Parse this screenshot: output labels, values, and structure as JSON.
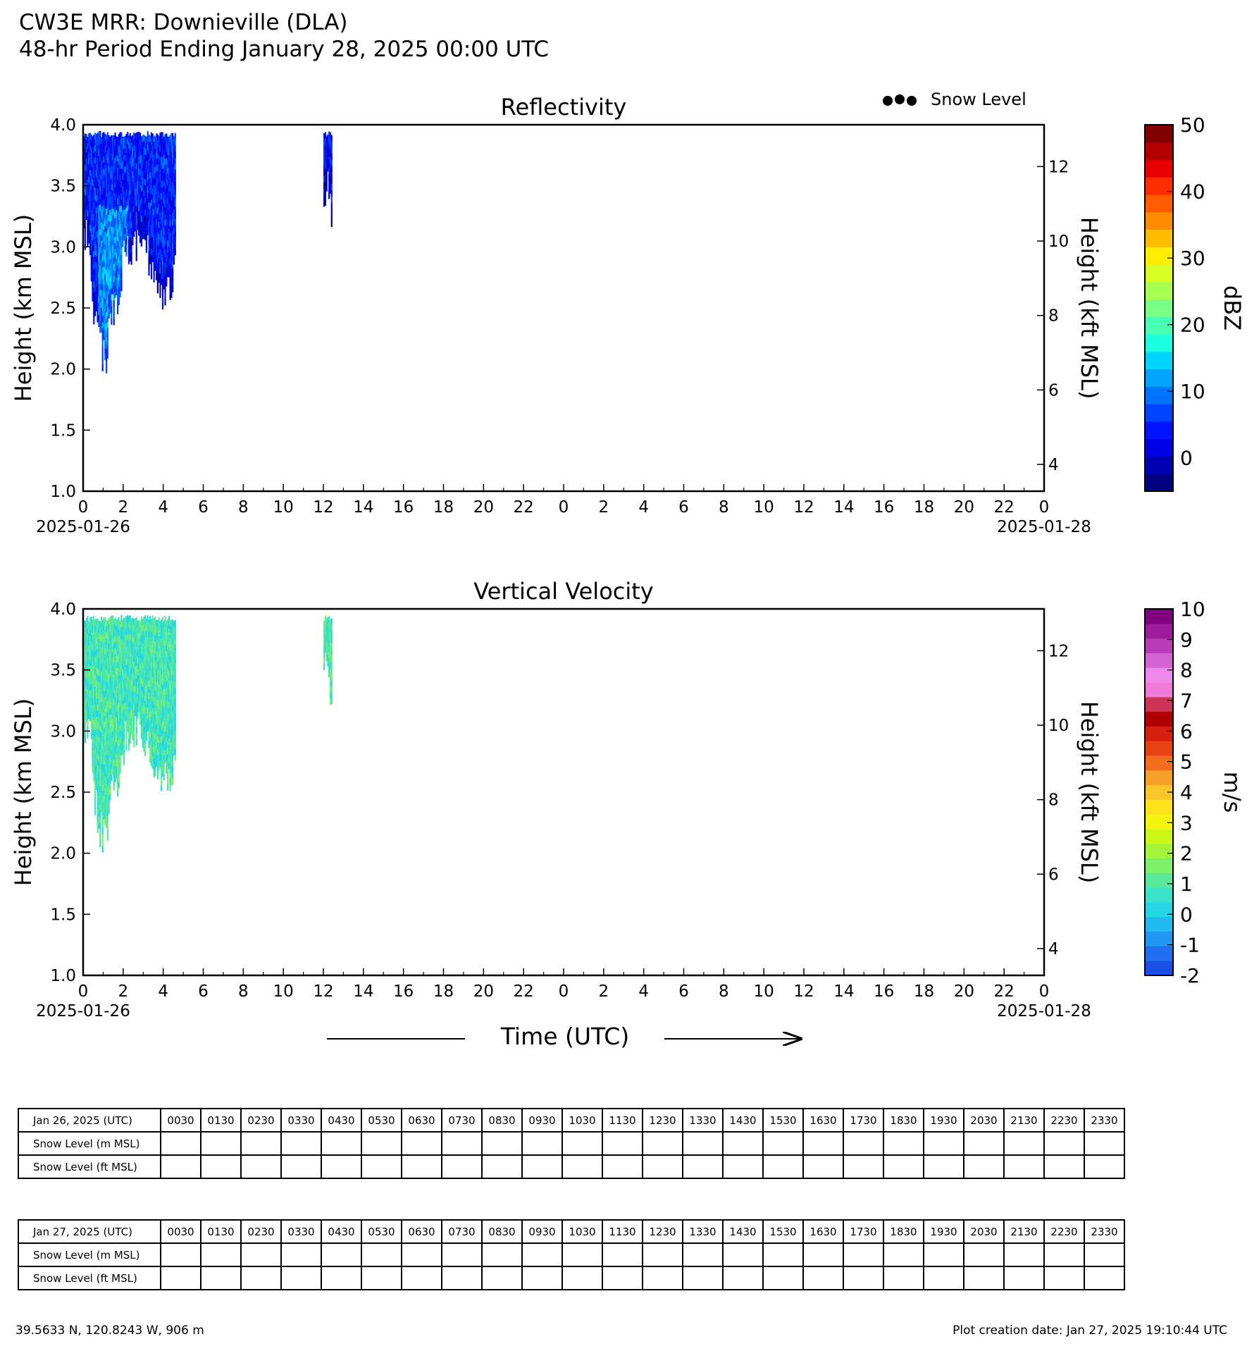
{
  "header": {
    "title_line1": "CW3E MRR: Downieville (DLA)",
    "title_line2": "48-hr Period Ending January 28, 2025 00:00 UTC"
  },
  "legend": {
    "snow_level_label": "Snow Level",
    "marker_color": "#000000"
  },
  "chart_data": [
    {
      "type": "heatmap",
      "title": "Reflectivity",
      "ylabel": "Height (km MSL)",
      "ylabel_right": "Height (kft MSL)",
      "ylim": [
        1.0,
        4.0
      ],
      "ylim_right_kft": [
        3.28,
        13.12
      ],
      "yticks": [
        "1.0",
        "1.5",
        "2.0",
        "2.5",
        "3.0",
        "3.5",
        "4.0"
      ],
      "yticks_right": [
        "4",
        "6",
        "8",
        "10",
        "12"
      ],
      "xlim_hours": [
        0,
        48
      ],
      "xticks": [
        "0",
        "2",
        "4",
        "6",
        "8",
        "10",
        "12",
        "14",
        "16",
        "18",
        "20",
        "22",
        "0",
        "2",
        "4",
        "6",
        "8",
        "10",
        "12",
        "14",
        "16",
        "18",
        "20",
        "22",
        "0"
      ],
      "date_start": "2025-01-26",
      "date_end": "2025-01-28",
      "colorbar": {
        "label": "dBZ",
        "range": [
          -5,
          50
        ],
        "ticks": [
          "0",
          "10",
          "20",
          "30",
          "40",
          "50"
        ],
        "colors": [
          "#000080",
          "#0000b4",
          "#0000e6",
          "#0014ff",
          "#0044ff",
          "#0074ff",
          "#00a4ff",
          "#00d4ff",
          "#1cffe0",
          "#48ffb4",
          "#78ff84",
          "#a8ff54",
          "#d8ff24",
          "#ffec00",
          "#ffbc00",
          "#ff8c00",
          "#ff5c00",
          "#ff2c00",
          "#e80000",
          "#b40000",
          "#800000"
        ]
      },
      "echoes": [
        {
          "name": "echo-early",
          "time_start_h": 0.0,
          "time_end_h": 4.6,
          "base_km_profile": [
            [
              0.0,
              3.1
            ],
            [
              0.3,
              3.0
            ],
            [
              0.5,
              2.5
            ],
            [
              0.8,
              2.2
            ],
            [
              1.1,
              2.1
            ],
            [
              1.4,
              2.5
            ],
            [
              1.7,
              2.6
            ],
            [
              2.0,
              2.9
            ],
            [
              2.4,
              3.0
            ],
            [
              2.9,
              3.0
            ],
            [
              3.3,
              2.9
            ],
            [
              3.6,
              2.7
            ],
            [
              4.0,
              2.6
            ],
            [
              4.3,
              2.6
            ],
            [
              4.6,
              2.9
            ]
          ],
          "top_km": 3.9,
          "typical_dbz": 5
        },
        {
          "name": "echo-noon",
          "time_start_h": 12.0,
          "time_end_h": 12.4,
          "base_km_profile": [
            [
              12.0,
              3.5
            ],
            [
              12.2,
              3.5
            ],
            [
              12.4,
              3.3
            ]
          ],
          "top_km": 3.9,
          "typical_dbz": 4
        }
      ]
    },
    {
      "type": "heatmap",
      "title": "Vertical Velocity",
      "ylabel": "Height (km MSL)",
      "ylabel_right": "Height (kft MSL)",
      "ylim": [
        1.0,
        4.0
      ],
      "ylim_right_kft": [
        3.28,
        13.12
      ],
      "yticks": [
        "1.0",
        "1.5",
        "2.0",
        "2.5",
        "3.0",
        "3.5",
        "4.0"
      ],
      "yticks_right": [
        "4",
        "6",
        "8",
        "10",
        "12"
      ],
      "xlim_hours": [
        0,
        48
      ],
      "xticks": [
        "0",
        "2",
        "4",
        "6",
        "8",
        "10",
        "12",
        "14",
        "16",
        "18",
        "20",
        "22",
        "0",
        "2",
        "4",
        "6",
        "8",
        "10",
        "12",
        "14",
        "16",
        "18",
        "20",
        "22",
        "0"
      ],
      "date_start": "2025-01-26",
      "date_end": "2025-01-28",
      "xlabel": "Time (UTC)",
      "colorbar": {
        "label": "m/s",
        "range": [
          -2,
          10
        ],
        "ticks": [
          "-2",
          "-1",
          "0",
          "1",
          "2",
          "3",
          "4",
          "5",
          "6",
          "7",
          "8",
          "9",
          "10"
        ],
        "colors": [
          "#1c4ee8",
          "#1f6ff0",
          "#2196f3",
          "#22b8f0",
          "#24d6e6",
          "#3ae2c8",
          "#5ae89a",
          "#7ef06a",
          "#a6f43a",
          "#ccf818",
          "#f2f410",
          "#fee21e",
          "#fbc62a",
          "#f6a02a",
          "#f06e1e",
          "#e84214",
          "#d4200c",
          "#b00000",
          "#cc3355",
          "#f07ad8",
          "#ee88ee",
          "#d464d4",
          "#b83cb8",
          "#9c1c9c",
          "#800080"
        ]
      },
      "echoes": [
        {
          "name": "echo-early",
          "time_start_h": 0.0,
          "time_end_h": 4.6,
          "base_km_profile": [
            [
              0.0,
              3.1
            ],
            [
              0.3,
              3.0
            ],
            [
              0.5,
              2.5
            ],
            [
              0.8,
              2.2
            ],
            [
              1.1,
              2.1
            ],
            [
              1.4,
              2.5
            ],
            [
              1.7,
              2.6
            ],
            [
              2.0,
              2.9
            ],
            [
              2.4,
              3.0
            ],
            [
              2.9,
              3.0
            ],
            [
              3.3,
              2.9
            ],
            [
              3.6,
              2.7
            ],
            [
              4.0,
              2.6
            ],
            [
              4.3,
              2.6
            ],
            [
              4.6,
              2.9
            ]
          ],
          "top_km": 3.9,
          "typical_ms": 0.8
        },
        {
          "name": "echo-noon",
          "time_start_h": 12.0,
          "time_end_h": 12.4,
          "base_km_profile": [
            [
              12.0,
              3.5
            ],
            [
              12.2,
              3.5
            ],
            [
              12.4,
              3.3
            ]
          ],
          "top_km": 3.9,
          "typical_ms": 1.0
        }
      ]
    }
  ],
  "tables": [
    {
      "date_label": "Jan 26, 2025 (UTC)",
      "row_m_label": "Snow Level (m MSL)",
      "row_ft_label": "Snow Level (ft MSL)",
      "times": [
        "0030",
        "0130",
        "0230",
        "0330",
        "0430",
        "0530",
        "0630",
        "0730",
        "0830",
        "0930",
        "1030",
        "1130",
        "1230",
        "1330",
        "1430",
        "1530",
        "1630",
        "1730",
        "1830",
        "1930",
        "2030",
        "2130",
        "2230",
        "2330"
      ]
    },
    {
      "date_label": "Jan 27, 2025 (UTC)",
      "row_m_label": "Snow Level (m MSL)",
      "row_ft_label": "Snow Level (ft MSL)",
      "times": [
        "0030",
        "0130",
        "0230",
        "0330",
        "0430",
        "0530",
        "0630",
        "0730",
        "0830",
        "0930",
        "1030",
        "1130",
        "1230",
        "1330",
        "1430",
        "1530",
        "1630",
        "1730",
        "1830",
        "1930",
        "2030",
        "2130",
        "2230",
        "2330"
      ]
    }
  ],
  "footer": {
    "location": "39.5633 N, 120.8243 W, 906 m",
    "creation": "Plot creation date: Jan 27, 2025 19:10:44 UTC"
  }
}
